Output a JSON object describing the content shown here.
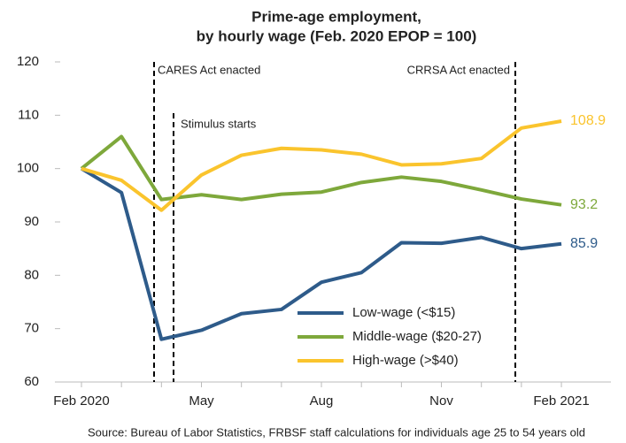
{
  "chart_data": {
    "type": "line",
    "title": "Prime-age employment,",
    "subtitle": "by hourly wage (Feb. 2020 EPOP = 100)",
    "categories": [
      "Feb 2020",
      null,
      null,
      "May",
      null,
      null,
      "Aug",
      null,
      null,
      "Nov",
      null,
      null,
      "Feb 2021"
    ],
    "series": [
      {
        "name": "Low-wage (<$15)",
        "color": "#2e5b8a",
        "values": [
          100,
          95.5,
          68,
          69.7,
          72.8,
          73.6,
          78.7,
          80.5,
          86.1,
          86,
          87.1,
          85,
          85.9
        ]
      },
      {
        "name": "Middle-wage ($20-27)",
        "color": "#7ea83b",
        "values": [
          100,
          106,
          94.2,
          95.1,
          94.2,
          95.2,
          95.6,
          97.4,
          98.4,
          97.6,
          96,
          94.3,
          93.2
        ]
      },
      {
        "name": "High-wage (>$40)",
        "color": "#fac42d",
        "values": [
          100,
          97.8,
          92.2,
          98.8,
          102.5,
          103.8,
          103.5,
          102.7,
          100.7,
          100.9,
          101.9,
          107.6,
          108.9
        ]
      }
    ],
    "ylim": [
      60,
      120
    ],
    "yticks": [
      60,
      70,
      80,
      90,
      100,
      110,
      120
    ],
    "grid": false,
    "annotations": [
      "CARES Act enacted",
      "Stimulus starts",
      "CRRSA Act enacted"
    ],
    "source": "Source: Bureau of Labor Statistics, FRBSF staff calculations for individuals age 25 to 54 years old"
  }
}
